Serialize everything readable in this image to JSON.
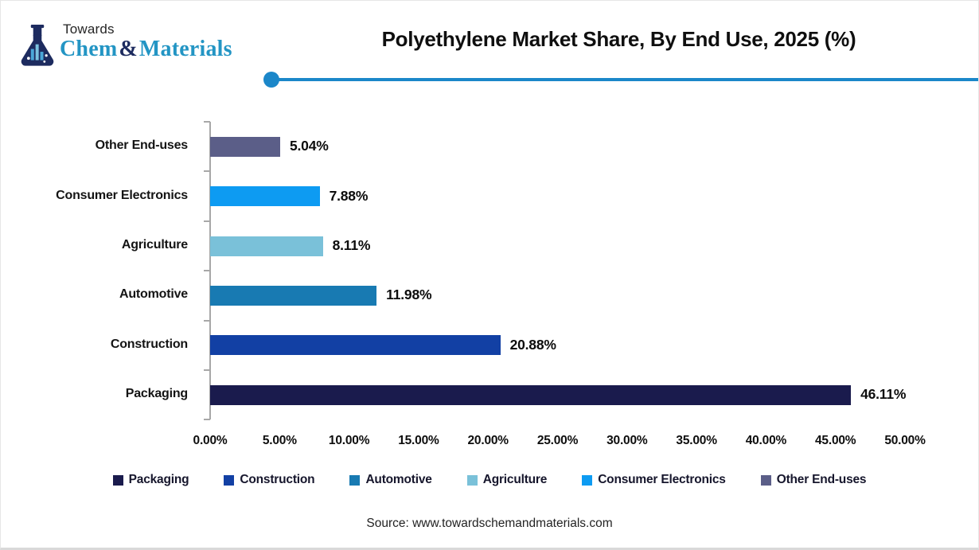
{
  "logo": {
    "top_text": "Towards",
    "brand_chem": "Chem",
    "brand_amp": "&",
    "brand_materials": "Materials",
    "flask_color": "#1d2b5f",
    "flask_liquid_color": "#4aa7d8"
  },
  "header": {
    "accent_color": "#1b87c9"
  },
  "chart_data": {
    "type": "bar",
    "orientation": "horizontal",
    "title": "Polyethylene Market Share, By End Use, 2025 (%)",
    "categories": [
      "Packaging",
      "Construction",
      "Automotive",
      "Agriculture",
      "Consumer Electronics",
      "Other End-uses"
    ],
    "values": [
      46.11,
      20.88,
      11.98,
      8.11,
      7.88,
      5.04
    ],
    "value_labels": [
      "46.11%",
      "20.88%",
      "11.98%",
      "8.11%",
      "7.88%",
      "5.04%"
    ],
    "bar_colors": [
      "#1a1b4d",
      "#1240a4",
      "#187ab2",
      "#7ac1d9",
      "#0d9bf2",
      "#5b5e88"
    ],
    "bar_order": "largest at bottom, displayed top-to-bottom: Other End-uses, Consumer Electronics, Agriculture, Automotive, Construction, Packaging",
    "xlim": [
      0,
      50
    ],
    "x_tick_labels": [
      "0.00%",
      "5.00%",
      "10.00%",
      "15.00%",
      "20.00%",
      "25.00%",
      "30.00%",
      "35.00%",
      "40.00%",
      "45.00%",
      "50.00%"
    ],
    "grid": "off",
    "axis_color": "#a8a8a8",
    "legend_position": "bottom",
    "legend_labels": [
      "Packaging",
      "Construction",
      "Automotive",
      "Agriculture",
      "Consumer Electronics",
      "Other End-uses"
    ]
  },
  "source": {
    "text": "Source: www.towardschemandmaterials.com"
  }
}
